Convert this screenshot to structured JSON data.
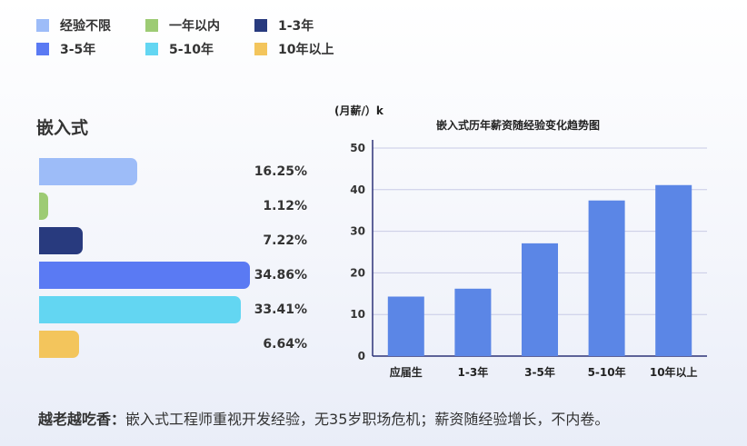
{
  "legend": [
    {
      "label": "经验不限",
      "color": "#9dbcf8"
    },
    {
      "label": "一年以内",
      "color": "#9dcb74"
    },
    {
      "label": "1-3年",
      "color": "#283a7e"
    },
    {
      "label": "3-5年",
      "color": "#5a7af3"
    },
    {
      "label": "5-10年",
      "color": "#63d6f2"
    },
    {
      "label": "10年以上",
      "color": "#f3c55c"
    }
  ],
  "section_title": "嵌入式",
  "chart_data": [
    {
      "type": "bar",
      "orientation": "horizontal",
      "categories": [
        "经验不限",
        "一年以内",
        "1-3年",
        "3-5年",
        "5-10年",
        "10年以上"
      ],
      "values": [
        16.25,
        1.12,
        7.22,
        34.86,
        33.41,
        6.64
      ],
      "value_labels": [
        "16.25%",
        "1.12%",
        "7.22%",
        "34.86%",
        "33.41%",
        "6.64%"
      ],
      "colors": [
        "#9dbcf8",
        "#9dcb74",
        "#283a7e",
        "#5a7af3",
        "#63d6f2",
        "#f3c55c"
      ],
      "title": "嵌入式"
    },
    {
      "type": "bar",
      "title": "嵌入式历年薪资随经验变化趋势图",
      "ylabel": "(月薪/）k",
      "categories": [
        "应届生",
        "1-3年",
        "3-5年",
        "5-10年",
        "10年以上"
      ],
      "values": [
        14.3,
        16.2,
        27.1,
        37.4,
        41.1
      ],
      "ylim": [
        0,
        50
      ],
      "yticks": [
        0,
        10,
        20,
        30,
        40,
        50
      ],
      "bar_color": "#5b86e6",
      "grid": true
    }
  ],
  "footer": {
    "bold": "越老越吃香：",
    "text": "嵌入式工程师重视开发经验，无35岁职场危机；薪资随经验增长，不内卷。"
  }
}
